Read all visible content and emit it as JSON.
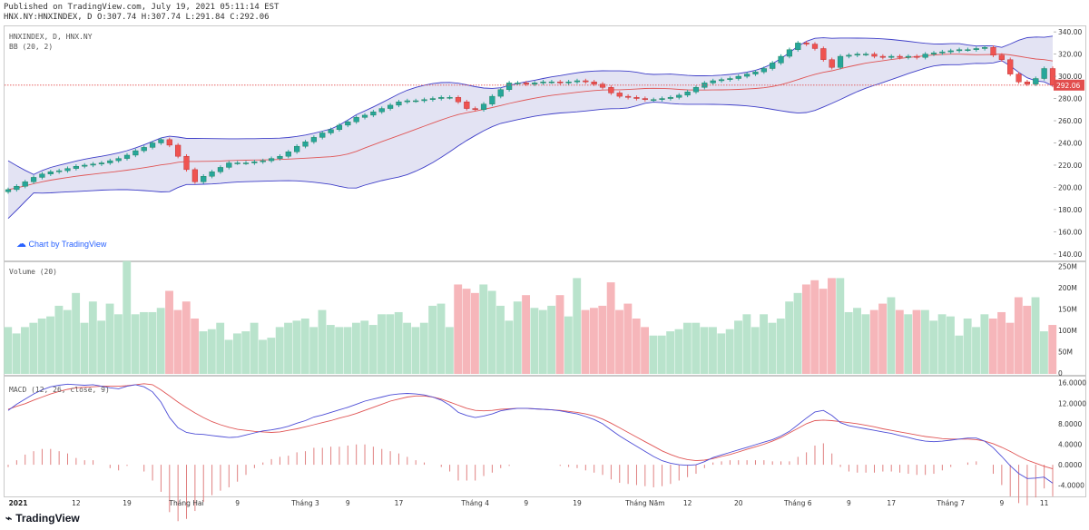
{
  "header": {
    "published": "Published on TradingView.com, July 19, 2021 05:11:14 EST",
    "ohlc": "HNX.NY:HNXINDEX, D O:307.74 H:307.74 L:291.84 C:292.06"
  },
  "main_legend": {
    "symbol": "HNXINDEX, D, HNX.NY",
    "bb": "BB (20, 2)"
  },
  "volume_legend": "Volume (20)",
  "macd_legend": "MACD (12, 26, close, 9)",
  "watermark": "Chart by TradingView",
  "brand": "TradingView",
  "colors": {
    "up": "#26a69a",
    "down": "#ef5350",
    "bb_fill": "#d9d9ef",
    "bb_band": "#3f3fc8",
    "bb_mid": "#e05555",
    "macd": "#4d4dd6",
    "signal": "#e05555",
    "last_price": "#e24e4e"
  },
  "chart_data": {
    "type": "candlestick",
    "title": "HNXINDEX, D, HNX.NY",
    "ylim": [
      135,
      345
    ],
    "price_ticks": [
      "340.00",
      "320.00",
      "300.00",
      "280.00",
      "260.00",
      "240.00",
      "220.00",
      "200.00",
      "180.00",
      "160.00",
      "140.00"
    ],
    "last_price": "292.06",
    "x_labels": [
      "2021",
      "12",
      "19",
      "Tháng Hai",
      "9",
      "Tháng 3",
      "9",
      "17",
      "Tháng 4",
      "9",
      "19",
      "Tháng Năm",
      "12",
      "20",
      "Tháng 6",
      "9",
      "17",
      "Tháng 7",
      "9",
      "11"
    ],
    "closes": [
      198,
      201,
      205,
      209,
      212,
      214,
      215,
      217,
      219,
      220,
      221,
      222,
      224,
      226,
      229,
      233,
      236,
      240,
      243,
      238,
      228,
      216,
      205,
      210,
      214,
      218,
      222,
      222,
      222,
      223,
      224,
      226,
      228,
      232,
      237,
      241,
      245,
      249,
      252,
      256,
      259,
      263,
      265,
      268,
      271,
      274,
      277,
      278,
      278,
      279,
      280,
      281,
      281,
      277,
      271,
      270,
      275,
      282,
      288,
      294,
      294,
      293,
      294,
      295,
      295,
      294,
      295,
      296,
      295,
      293,
      290,
      285,
      282,
      281,
      280,
      279,
      279,
      280,
      281,
      283,
      286,
      290,
      294,
      296,
      297,
      298,
      300,
      302,
      304,
      307,
      312,
      318,
      324,
      330,
      329,
      325,
      315,
      308,
      318,
      319,
      320,
      320,
      318,
      317,
      318,
      317,
      318,
      317,
      320,
      321,
      322,
      323,
      324,
      324,
      325,
      326,
      319,
      315,
      302,
      295,
      293,
      298,
      307,
      292
    ],
    "volume_ticks": [
      "250M",
      "200M",
      "150M",
      "100M",
      "50M",
      "0"
    ],
    "volume_ylim": [
      0,
      260
    ],
    "volumes": [
      110,
      95,
      110,
      120,
      130,
      135,
      160,
      150,
      190,
      120,
      170,
      125,
      165,
      140,
      265,
      140,
      145,
      145,
      155,
      195,
      150,
      170,
      130,
      100,
      105,
      120,
      80,
      95,
      100,
      120,
      80,
      85,
      110,
      120,
      125,
      130,
      110,
      150,
      115,
      110,
      110,
      120,
      125,
      115,
      140,
      140,
      145,
      120,
      110,
      120,
      160,
      165,
      110,
      210,
      200,
      190,
      210,
      195,
      160,
      125,
      170,
      185,
      155,
      150,
      160,
      185,
      135,
      225,
      150,
      155,
      160,
      215,
      150,
      165,
      130,
      110,
      90,
      90,
      100,
      105,
      120,
      120,
      110,
      110,
      95,
      105,
      125,
      140,
      110,
      140,
      120,
      130,
      170,
      190,
      210,
      220,
      200,
      225,
      225,
      145,
      155,
      140,
      150,
      165,
      180,
      150,
      140,
      150,
      150,
      125,
      140,
      135,
      90,
      130,
      110,
      140,
      130,
      145,
      120,
      180,
      160,
      180,
      100,
      115
    ],
    "macd_ticks": [
      "16.0000",
      "12.0000",
      "8.0000",
      "4.0000",
      "0.0000",
      "-4.0000"
    ],
    "macd_ylim": [
      -6,
      17
    ],
    "macd": [
      10.6,
      11.8,
      12.8,
      13.8,
      14.6,
      15.2,
      15.5,
      15.7,
      15.6,
      15.5,
      15.6,
      15.3,
      15.0,
      14.8,
      15.3,
      15.6,
      15.2,
      14.2,
      12.2,
      9.2,
      7.2,
      6.3,
      6.0,
      5.9,
      5.7,
      5.5,
      5.3,
      5.4,
      5.8,
      6.2,
      6.6,
      6.8,
      7.1,
      7.5,
      8.1,
      8.6,
      9.3,
      9.7,
      10.2,
      10.7,
      11.2,
      11.8,
      12.4,
      12.8,
      13.2,
      13.6,
      13.8,
      13.9,
      13.8,
      13.6,
      13.2,
      12.6,
      11.6,
      10.2,
      9.6,
      9.2,
      9.5,
      9.9,
      10.5,
      10.8,
      11.0,
      11.0,
      10.9,
      10.8,
      10.7,
      10.5,
      10.2,
      9.9,
      9.4,
      8.8,
      8.0,
      6.8,
      5.6,
      4.6,
      3.6,
      2.6,
      1.6,
      0.8,
      0.3,
      0.0,
      -0.1,
      0.0,
      0.6,
      1.4,
      1.9,
      2.4,
      2.9,
      3.4,
      3.9,
      4.4,
      4.9,
      5.6,
      6.5,
      7.8,
      9.1,
      10.3,
      10.6,
      9.6,
      8.2,
      7.6,
      7.3,
      7.0,
      6.7,
      6.4,
      6.1,
      5.7,
      5.3,
      4.9,
      4.6,
      4.5,
      4.6,
      4.8,
      5.0,
      5.2,
      5.2,
      4.6,
      3.3,
      1.6,
      -0.2,
      -1.7,
      -2.7,
      -2.6,
      -2.4,
      -3.6
    ],
    "signal": [
      10.8,
      11.4,
      11.9,
      12.6,
      13.2,
      13.8,
      14.3,
      14.7,
      15.0,
      15.1,
      15.2,
      15.3,
      15.3,
      15.3,
      15.4,
      15.6,
      15.8,
      15.6,
      14.6,
      13.4,
      12.2,
      11.1,
      10.1,
      9.2,
      8.4,
      7.8,
      7.3,
      6.9,
      6.7,
      6.5,
      6.4,
      6.3,
      6.4,
      6.7,
      7.0,
      7.4,
      7.8,
      8.2,
      8.6,
      9.1,
      9.5,
      10.0,
      10.6,
      11.2,
      11.8,
      12.4,
      12.8,
      13.2,
      13.4,
      13.4,
      13.2,
      12.8,
      12.2,
      11.6,
      11.0,
      10.6,
      10.5,
      10.6,
      10.8,
      10.9,
      11.0,
      11.0,
      10.9,
      10.8,
      10.7,
      10.6,
      10.4,
      10.2,
      9.9,
      9.5,
      8.9,
      8.1,
      7.2,
      6.3,
      5.4,
      4.5,
      3.6,
      2.7,
      2.0,
      1.4,
      1.0,
      0.8,
      0.9,
      1.2,
      1.6,
      2.0,
      2.5,
      3.0,
      3.5,
      4.0,
      4.6,
      5.3,
      6.2,
      7.1,
      8.0,
      8.6,
      8.7,
      8.6,
      8.4,
      8.2,
      8.0,
      7.7,
      7.4,
      7.0,
      6.7,
      6.4,
      6.1,
      5.8,
      5.5,
      5.3,
      5.1,
      5.0,
      5.0,
      5.0,
      4.9,
      4.6,
      4.1,
      3.4,
      2.6,
      1.7,
      0.9,
      0.3,
      -0.3,
      -0.8
    ]
  }
}
